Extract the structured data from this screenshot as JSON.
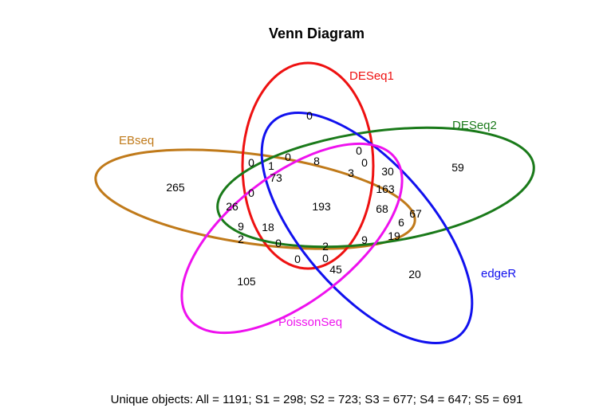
{
  "title": "Venn Diagram",
  "sets": [
    {
      "id": "ebseq",
      "label": "EBseq",
      "color": "#C07A1A"
    },
    {
      "id": "deseq1",
      "label": "DESeq1",
      "color": "#EE1111"
    },
    {
      "id": "deseq2",
      "label": "DESeq2",
      "color": "#1A7A1A"
    },
    {
      "id": "edger",
      "label": "edgeR",
      "color": "#1111EE"
    },
    {
      "id": "poissonseq",
      "label": "PoissonSeq",
      "color": "#EE11EE"
    }
  ],
  "counts": [
    "0",
    "265",
    "59",
    "20",
    "105",
    "0",
    "1",
    "0",
    "8",
    "0",
    "0",
    "30",
    "73",
    "3",
    "163",
    "0",
    "26",
    "193",
    "68",
    "67",
    "6",
    "9",
    "18",
    "19",
    "2",
    "0",
    "2",
    "9",
    "0",
    "0",
    "45"
  ],
  "footer": "Unique objects: All = 1191; S1 = 298; S2 = 723; S3 = 677; S4 = 647; S5 = 691"
}
